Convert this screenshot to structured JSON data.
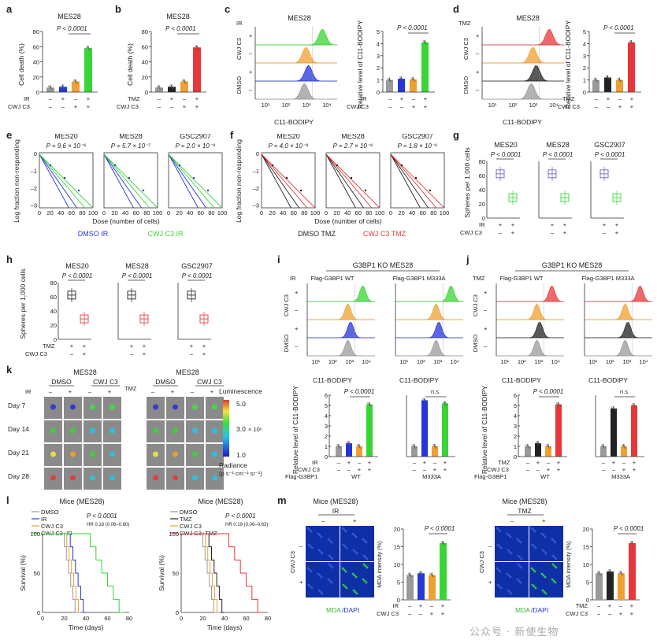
{
  "letters": [
    "a",
    "b",
    "c",
    "d",
    "e",
    "f",
    "g",
    "h",
    "i",
    "j",
    "k",
    "l",
    "m"
  ],
  "colors": {
    "green": "#39d436",
    "orange": "#f0a030",
    "blue": "#2636d8",
    "red": "#e8373a",
    "gray": "#9a9a9a",
    "black": "#222222",
    "purple": "#6b63c8"
  },
  "panel_a": {
    "title": "MES28",
    "ylabel": "Cell death (%)",
    "yticks": [
      "0",
      "20",
      "40",
      "60",
      "80"
    ],
    "pval": "P < 0.0001",
    "row1_label": "IR",
    "row2_label": "CWJ C3",
    "row1": [
      "–",
      "+",
      "–",
      "+"
    ],
    "row2": [
      "–",
      "–",
      "+",
      "+"
    ],
    "chart_data": {
      "type": "bar",
      "categories": [
        "Ctrl",
        "IR",
        "CWJ C3",
        "IR+CWJ C3"
      ],
      "values": [
        6,
        7,
        14,
        58
      ],
      "ylim": [
        0,
        80
      ],
      "ylabel": "Cell death (%)",
      "title": "MES28"
    }
  },
  "panel_b": {
    "title": "MES28",
    "ylabel": "Cell death (%)",
    "yticks": [
      "0",
      "20",
      "40",
      "60",
      "80"
    ],
    "pval": "P < 0.0001",
    "row1_label": "TMZ",
    "row2_label": "CWJ C3",
    "row1": [
      "–",
      "+",
      "–",
      "+"
    ],
    "row2": [
      "–",
      "–",
      "+",
      "+"
    ],
    "chart_data": {
      "type": "bar",
      "categories": [
        "Ctrl",
        "TMZ",
        "CWJ C3",
        "TMZ+CWJ C3"
      ],
      "values": [
        6,
        7,
        14,
        59
      ],
      "ylim": [
        0,
        80
      ],
      "ylabel": "Cell death (%)",
      "title": "MES28"
    }
  },
  "panel_c": {
    "treat": "IR",
    "title": "MES28",
    "xlabel": "C11-BODIPY",
    "side_top": "CWJ C3",
    "side_bot": "DMSO",
    "plus": "+",
    "minus": "–",
    "xticks": [
      "10¹",
      "10²",
      "10³",
      "10⁴"
    ],
    "ylabel": "Relative level of C11-BODIPY",
    "yticks": [
      "0",
      "1",
      "2",
      "3",
      "4",
      "5"
    ],
    "pval": "P < 0.0001",
    "row1_label": "IR",
    "row2_label": "CWJ C3",
    "row1": [
      "–",
      "+",
      "–",
      "+"
    ],
    "row2": [
      "–",
      "–",
      "+",
      "+"
    ],
    "chart_data": {
      "type": "bar",
      "values": [
        1,
        1.1,
        1.05,
        4.1
      ],
      "ylim": [
        0,
        5
      ]
    }
  },
  "panel_d": {
    "treat": "TMZ",
    "title": "MES28",
    "xlabel": "C11-BODIPY",
    "side_top": "CWJ C3",
    "side_bot": "DMSO",
    "plus": "+",
    "minus": "–",
    "xticks": [
      "10¹",
      "10²",
      "10³",
      "10⁴"
    ],
    "ylabel": "Relative level of C11-BODIPY",
    "yticks": [
      "0",
      "1",
      "2",
      "3",
      "4",
      "5"
    ],
    "pval": "P < 0.0001",
    "row1_label": "TMZ",
    "row2_label": "CWJ C3",
    "row1": [
      "–",
      "+",
      "–",
      "+"
    ],
    "row2": [
      "–",
      "–",
      "+",
      "+"
    ],
    "chart_data": {
      "type": "bar",
      "values": [
        1,
        1.2,
        1.0,
        4.1
      ],
      "ylim": [
        0,
        5
      ]
    }
  },
  "panel_e": {
    "ylabel": "Log fraction non-responding",
    "xlabel": "Dose (number of cells)",
    "yticks": [
      "0",
      "–1",
      "–2",
      "–3"
    ],
    "xticks": [
      "0",
      "20",
      "40",
      "60",
      "80",
      "100"
    ],
    "plots": [
      {
        "title": "MES20",
        "pval": "P = 9.6 × 10⁻⁶"
      },
      {
        "title": "MES28",
        "pval": "P = 5.7 × 10⁻⁷"
      },
      {
        "title": "GSC2907",
        "pval": "P = 2.0 × 10⁻⁹"
      }
    ],
    "legend1": "DMSO IR",
    "legend2": "CWJ C3 IR"
  },
  "panel_f": {
    "ylabel": "Log fraction non-responding",
    "xlabel": "Dose (number of cells)",
    "yticks": [
      "0",
      "–1",
      "–2",
      "–3"
    ],
    "xticks": [
      "0",
      "20",
      "40",
      "60",
      "80",
      "100"
    ],
    "plots": [
      {
        "title": "MES20",
        "pval": "P = 4.0 × 10⁻⁸"
      },
      {
        "title": "MES28",
        "pval": "P = 2.7 × 10⁻⁶"
      },
      {
        "title": "GSC2907",
        "pval": "P = 1.8 × 10⁻⁶"
      }
    ],
    "legend1": "DMSO TMZ",
    "legend2": "CWJ C3 TMZ"
  },
  "panel_g": {
    "ylabel": "Spheres per 1,000 cells",
    "yticks": [
      "0",
      "20",
      "40",
      "60",
      "80"
    ],
    "plots": [
      {
        "title": "MES20",
        "pval": "P < 0.0001"
      },
      {
        "title": "MES28",
        "pval": "P < 0.0001"
      },
      {
        "title": "GSC2907",
        "pval": "P < 0.0001"
      }
    ],
    "row1_label": "IR",
    "row2_label": "CWJ C3",
    "row1": [
      "+",
      "+"
    ],
    "row2": [
      "–",
      "+"
    ]
  },
  "panel_h": {
    "ylabel": "Spheres per 1,000 cells",
    "yticks": [
      "0",
      "20",
      "40",
      "60",
      "80"
    ],
    "plots": [
      {
        "title": "MES20",
        "pval": "P < 0.0001"
      },
      {
        "title": "MES28",
        "pval": "P < 0.0001"
      },
      {
        "title": "GSC2907",
        "pval": "P < 0.0001"
      }
    ],
    "row1_label": "TMZ",
    "row2_label": "CWJ C3",
    "row1": [
      "+",
      "+"
    ],
    "row2": [
      "–",
      "+"
    ]
  },
  "panel_i": {
    "header": "G3BP1 KO MES28",
    "treat": "IR",
    "sub1": "Flag-G3BP1 WT",
    "sub2": "Flag-G3BP1 M333A",
    "xlabel": "C11-BODIPY",
    "side_top": "CWJ C3",
    "side_bot": "DMSO",
    "plus": "+",
    "minus": "–",
    "xticks": [
      "10¹",
      "10²",
      "10³",
      "10⁴"
    ],
    "ylabel": "Relative level of C11-BODIPY",
    "yticks": [
      "0",
      "1",
      "2",
      "3",
      "4",
      "5",
      "6"
    ],
    "pval": "P < 0.0001",
    "ns": "n.s.",
    "row1_label": "IR",
    "row2_label": "CWJ C3",
    "row3_label": "Flag-G3BP1",
    "row1": [
      "–",
      "+",
      "–",
      "+"
    ],
    "row2": [
      "–",
      "–",
      "+",
      "+"
    ],
    "wt": "WT",
    "mut": "M333A",
    "chart_data": {
      "type": "bar",
      "series": [
        {
          "name": "WT",
          "values": [
            1,
            1.3,
            1.0,
            5.1
          ]
        },
        {
          "name": "M333A",
          "values": [
            1,
            5.5,
            1.0,
            5.2
          ]
        }
      ],
      "ylim": [
        0,
        6
      ]
    }
  },
  "panel_j": {
    "header": "G3BP1 KO MES28",
    "treat": "TMZ",
    "sub1": "Flag-G3BP1 WT",
    "sub2": "Flag-G3BP1 M333A",
    "xlabel": "C11-BODIPY",
    "side_top": "CWJ C3",
    "side_bot": "DMSO",
    "plus": "+",
    "minus": "–",
    "xticks": [
      "10¹",
      "10²",
      "10³",
      "10⁴"
    ],
    "ylabel": "Relative level of C11-BODIPY",
    "yticks": [
      "0",
      "1",
      "2",
      "3",
      "4",
      "5",
      "6"
    ],
    "pval": "P < 0.0001",
    "ns": "n.s.",
    "row1_label": "TMZ",
    "row2_label": "CWJ C3",
    "row3_label": "Flag-G3BP1",
    "row1": [
      "–",
      "+",
      "–",
      "+"
    ],
    "row2": [
      "–",
      "–",
      "+",
      "+"
    ],
    "wt": "WT",
    "mut": "M333A",
    "chart_data": {
      "type": "bar",
      "series": [
        {
          "name": "WT",
          "values": [
            1,
            1.3,
            1.0,
            5.1
          ]
        },
        {
          "name": "M333A",
          "values": [
            1,
            4.7,
            1.0,
            5.0
          ]
        }
      ],
      "ylim": [
        0,
        6
      ]
    }
  },
  "panel_k": {
    "title_left": "MES28",
    "title_right": "MES28",
    "g1": "DMSO",
    "g2": "CWJ C3",
    "treat_left": "IR",
    "treat_right": "TMZ",
    "minus": "–",
    "plus": "+",
    "days": [
      "Day 7",
      "Day 14",
      "Day 21",
      "Day 28"
    ],
    "lum": "Luminescence",
    "scale_top": "5.0",
    "scale_mid": "3.0",
    "scale_exp": "× 10⁶",
    "scale_bot": "1.0",
    "radiance": "Radiance",
    "radiance_unit": "(p s⁻¹ cm⁻² sr⁻¹)"
  },
  "panel_l": {
    "ylabel": "Survival (%)",
    "xlabel": "Time (days)",
    "yticks": [
      "0",
      "50",
      "100"
    ],
    "xticks": [
      "0",
      "20",
      "40",
      "60",
      "80"
    ],
    "left": {
      "title": "Mice (MES28)",
      "legend": [
        "DMSO",
        "IR",
        "CWJ C3",
        "CWJ C3+IR"
      ],
      "pval": "P < 0.0001",
      "hr": "HR 0.18 (0.06–0.60)"
    },
    "right": {
      "title": "Mice (MES28)",
      "legend": [
        "DMSO",
        "TMZ",
        "CWJ C3",
        "CWJ C3+TMZ"
      ],
      "pval": "P < 0.0001",
      "hr": "HR 0.19 (0.06–0.63)"
    }
  },
  "panel_m": {
    "left": {
      "title": "Mice (MES28)",
      "treat": "IR"
    },
    "right": {
      "title": "Mice (MES28)",
      "treat": "TMZ"
    },
    "side": "CWJ C3",
    "minus": "–",
    "plus": "+",
    "stain1": "MDA",
    "stain2": "/DAPI",
    "ylabel": "MDA intensity (%)",
    "yticks": [
      "0",
      "5",
      "10",
      "15",
      "20"
    ],
    "pval": "P < 0.0001",
    "row2_label": "CWJ C3",
    "row1": [
      "–",
      "+",
      "–",
      "+"
    ],
    "row2": [
      "–",
      "–",
      "+",
      "+"
    ],
    "chart_left": {
      "type": "bar",
      "values": [
        7,
        7.5,
        7,
        16
      ],
      "ylim": [
        0,
        20
      ]
    },
    "chart_right": {
      "type": "bar",
      "values": [
        7.5,
        8,
        7.5,
        16
      ],
      "ylim": [
        0,
        20
      ]
    }
  },
  "watermark": "公众号 · 新使生物"
}
